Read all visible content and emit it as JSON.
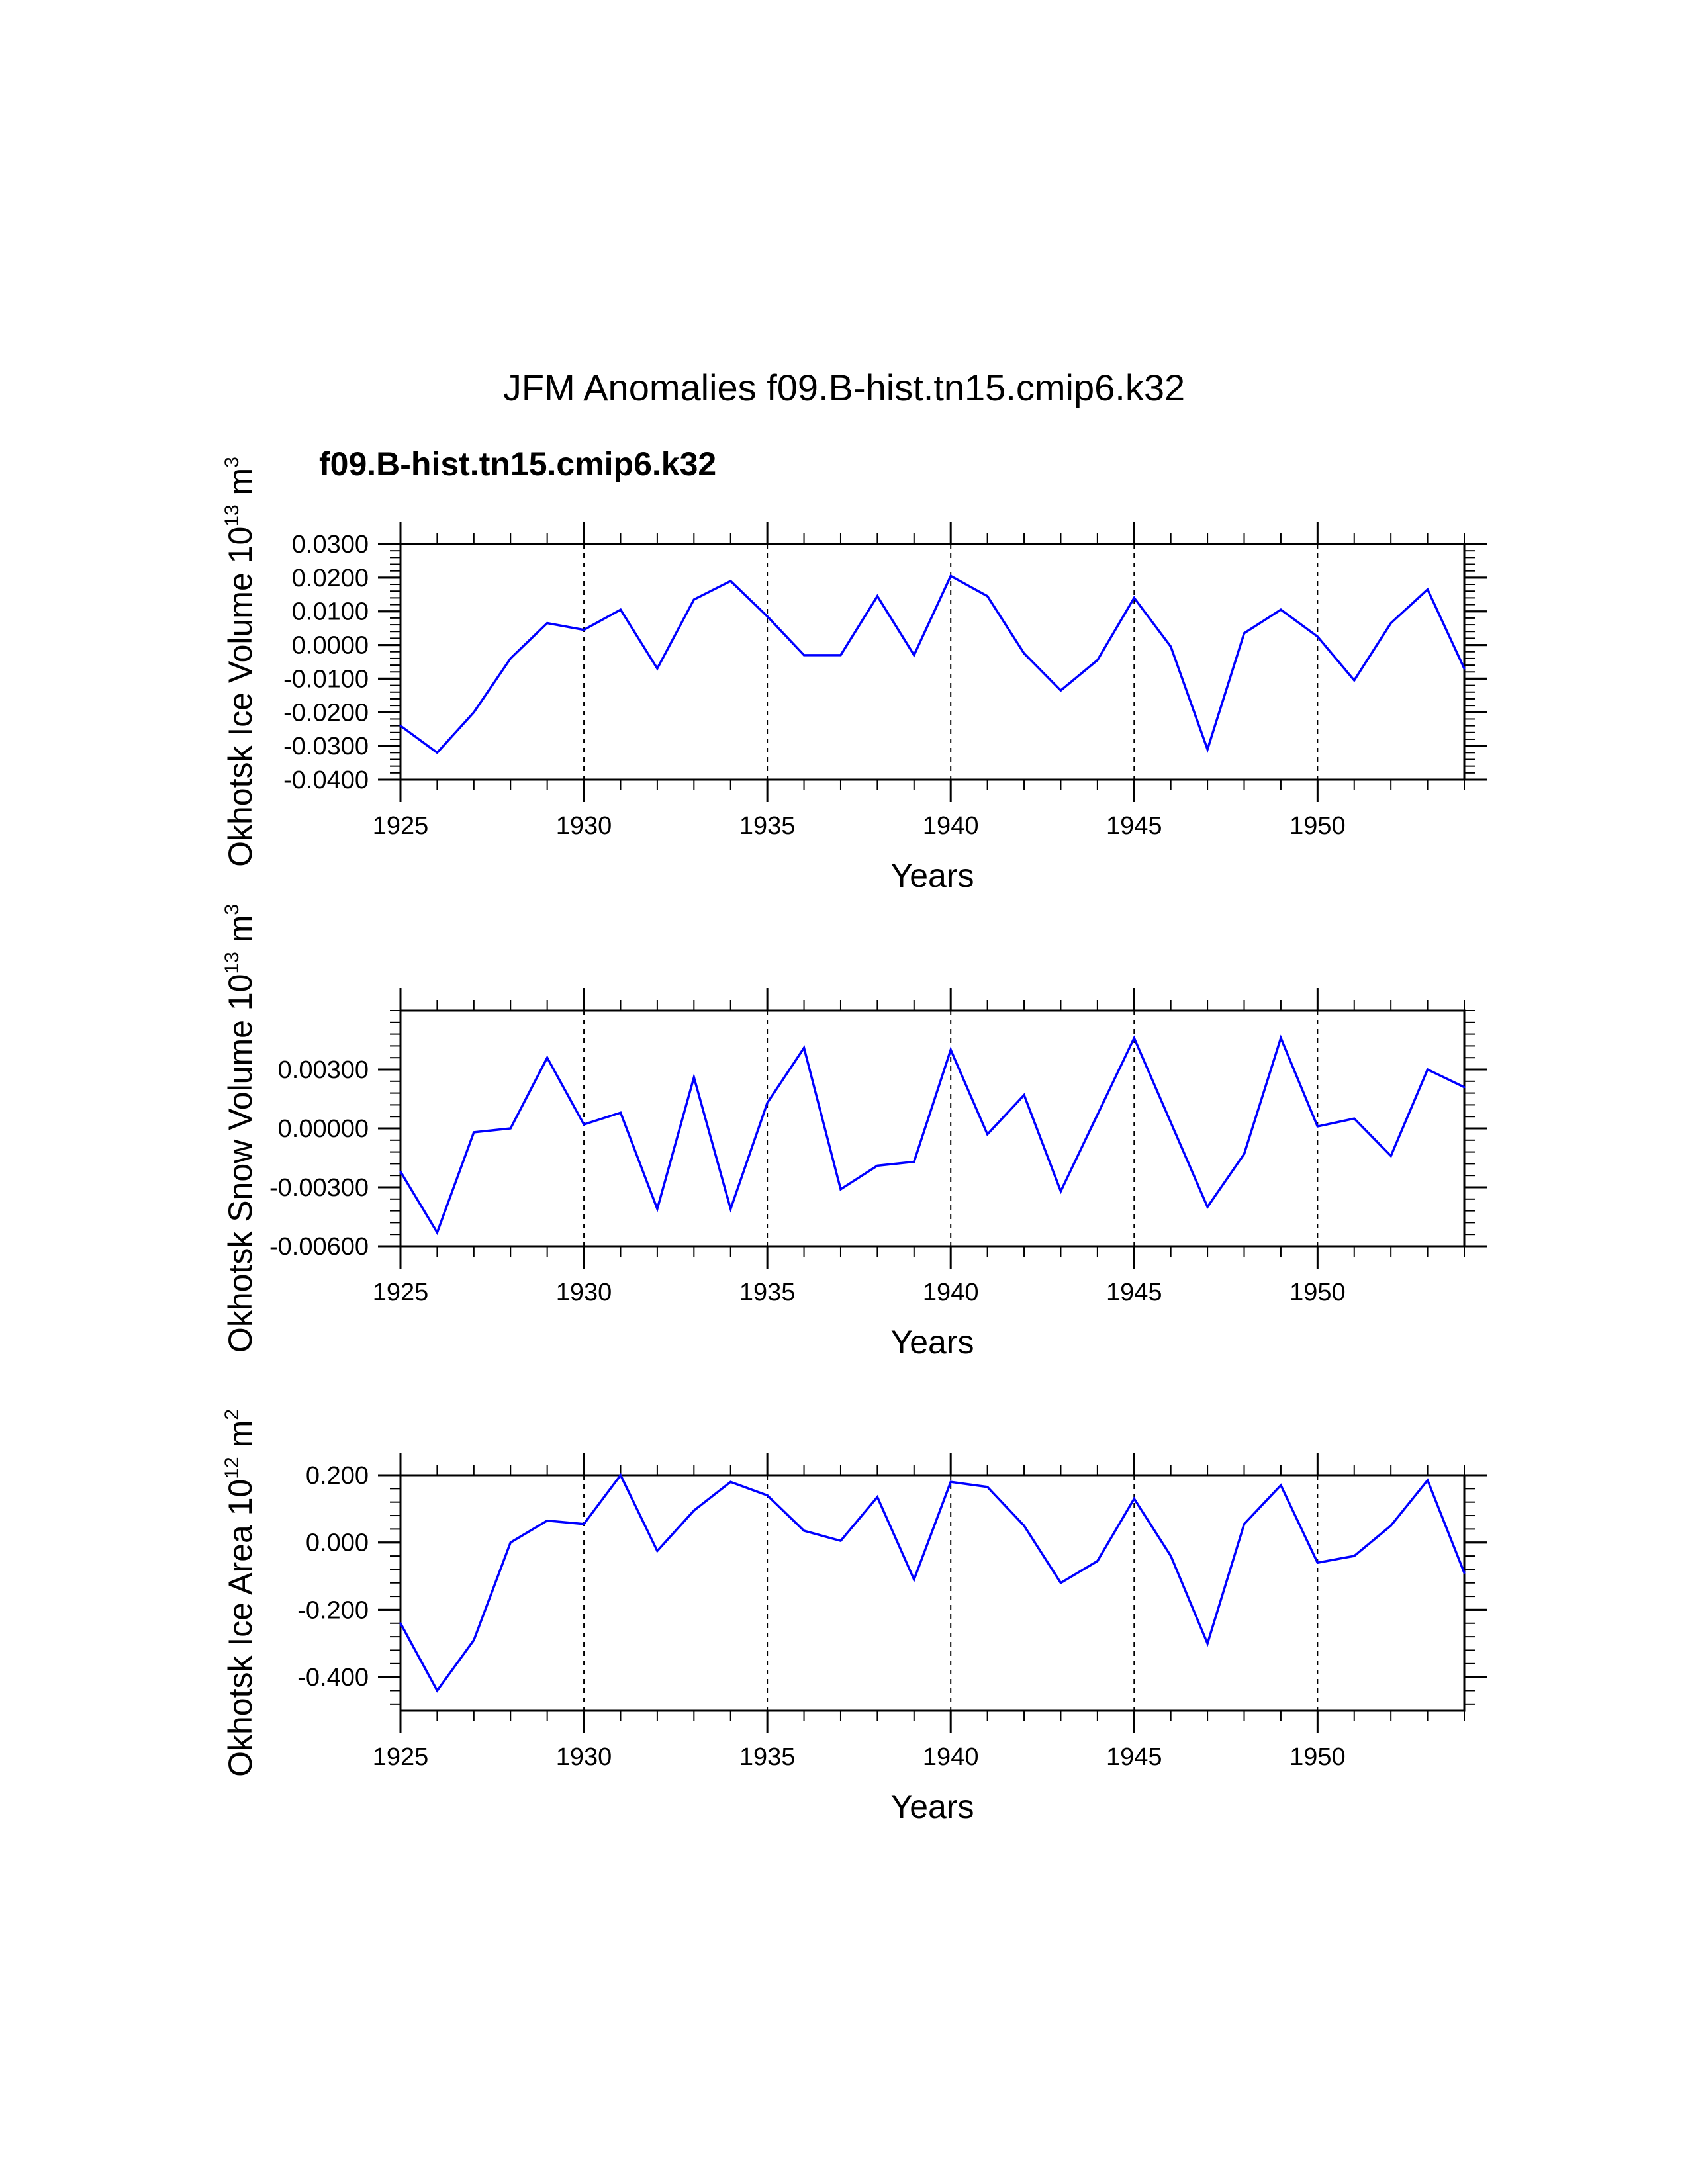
{
  "figure": {
    "title": "JFM Anomalies f09.B-hist.tn15.cmip6.k32",
    "case_label": "f09.B-hist.tn15.cmip6.k32",
    "case_color": "#0000ff",
    "line_color": "#0000ff"
  },
  "chart_data": [
    {
      "type": "line",
      "ylabel": "Okhotsk Ice Volume 10",
      "ylabel_exp": "13",
      "ylabel_unit": " m",
      "ylabel_unit_exp": "3",
      "xlabel": "Years",
      "xlim": [
        1925,
        1954
      ],
      "ylim": [
        -0.04,
        0.03
      ],
      "x_ticks": [
        1925,
        1930,
        1935,
        1940,
        1945,
        1950
      ],
      "x_tick_labels": [
        "1925",
        "1930",
        "1935",
        "1940",
        "1945",
        "1950"
      ],
      "y_ticks": [
        -0.04,
        -0.03,
        -0.02,
        -0.01,
        0.0,
        0.01,
        0.02,
        0.03
      ],
      "y_tick_labels": [
        "-0.0400",
        "-0.0300",
        "-0.0200",
        "-0.0100",
        "0.0000",
        "0.0100",
        "0.0200",
        "0.0300"
      ],
      "y_minor_step": 0.002,
      "y_minor_start": -0.04,
      "x": [
        1925,
        1926,
        1927,
        1928,
        1929,
        1930,
        1931,
        1932,
        1933,
        1934,
        1935,
        1936,
        1937,
        1938,
        1939,
        1940,
        1941,
        1942,
        1943,
        1944,
        1945,
        1946,
        1947,
        1948,
        1949,
        1950,
        1951,
        1952,
        1953,
        1954
      ],
      "series": [
        {
          "name": "f09.B-hist.tn15.cmip6.k32",
          "values": [
            -0.024,
            -0.032,
            -0.02,
            -0.004,
            0.0065,
            0.0045,
            0.0105,
            -0.007,
            0.0135,
            0.019,
            0.0085,
            -0.003,
            -0.003,
            0.0145,
            -0.003,
            0.0205,
            0.0145,
            -0.0025,
            -0.0135,
            -0.0045,
            0.014,
            -0.0005,
            -0.031,
            0.0035,
            0.0105,
            0.0025,
            -0.0105,
            0.0065,
            0.0165,
            -0.007
          ]
        }
      ]
    },
    {
      "type": "line",
      "ylabel": "Okhotsk Snow Volume 10",
      "ylabel_exp": "13",
      "ylabel_unit": " m",
      "ylabel_unit_exp": "3",
      "xlabel": "Years",
      "xlim": [
        1925,
        1954
      ],
      "ylim": [
        -0.006,
        0.006
      ],
      "x_ticks": [
        1925,
        1930,
        1935,
        1940,
        1945,
        1950
      ],
      "x_tick_labels": [
        "1925",
        "1930",
        "1935",
        "1940",
        "1945",
        "1950"
      ],
      "y_ticks": [
        -0.006,
        -0.003,
        0.0,
        0.003
      ],
      "y_tick_labels": [
        "-0.00600",
        "-0.00300",
        "0.00000",
        "0.00300"
      ],
      "y_minor_step": 0.0006,
      "y_minor_start": -0.006,
      "x": [
        1925,
        1926,
        1927,
        1928,
        1929,
        1930,
        1931,
        1932,
        1933,
        1934,
        1935,
        1936,
        1937,
        1938,
        1939,
        1940,
        1941,
        1942,
        1943,
        1944,
        1945,
        1946,
        1947,
        1948,
        1949,
        1950,
        1951,
        1952,
        1953,
        1954
      ],
      "series": [
        {
          "name": "f09.B-hist.tn15.cmip6.k32",
          "values": [
            -0.0022,
            -0.0053,
            -0.0002,
            0.0,
            0.0036,
            0.0002,
            0.0008,
            -0.0041,
            0.0026,
            -0.0041,
            0.0013,
            0.0041,
            -0.0031,
            -0.0019,
            -0.0017,
            0.004,
            -0.0003,
            0.0017,
            -0.0032,
            0.0007,
            0.0046,
            0.0003,
            -0.004,
            -0.0013,
            0.0046,
            0.0001,
            0.0005,
            -0.0014,
            0.003,
            0.0021
          ]
        }
      ]
    },
    {
      "type": "line",
      "ylabel": "Okhotsk Ice Area 10",
      "ylabel_exp": "12",
      "ylabel_unit": " m",
      "ylabel_unit_exp": "2",
      "xlabel": "Years",
      "xlim": [
        1925,
        1954
      ],
      "ylim": [
        -0.5,
        0.2
      ],
      "x_ticks": [
        1925,
        1930,
        1935,
        1940,
        1945,
        1950
      ],
      "x_tick_labels": [
        "1925",
        "1930",
        "1935",
        "1940",
        "1945",
        "1950"
      ],
      "y_ticks": [
        -0.4,
        -0.2,
        0.0,
        0.2
      ],
      "y_tick_labels": [
        "-0.400",
        "-0.200",
        "0.000",
        "0.200"
      ],
      "y_minor_step": 0.04,
      "y_minor_start": -0.48,
      "x": [
        1925,
        1926,
        1927,
        1928,
        1929,
        1930,
        1931,
        1932,
        1933,
        1934,
        1935,
        1936,
        1937,
        1938,
        1939,
        1940,
        1941,
        1942,
        1943,
        1944,
        1945,
        1946,
        1947,
        1948,
        1949,
        1950,
        1951,
        1952,
        1953,
        1954
      ],
      "series": [
        {
          "name": "f09.B-hist.tn15.cmip6.k32",
          "values": [
            -0.24,
            -0.44,
            -0.29,
            0.0,
            0.065,
            0.055,
            0.2,
            -0.025,
            0.095,
            0.18,
            0.14,
            0.035,
            0.005,
            0.135,
            -0.11,
            0.18,
            0.165,
            0.05,
            -0.12,
            -0.055,
            0.13,
            -0.04,
            -0.3,
            0.055,
            0.17,
            -0.06,
            -0.04,
            0.05,
            0.185,
            -0.09
          ]
        }
      ]
    }
  ]
}
